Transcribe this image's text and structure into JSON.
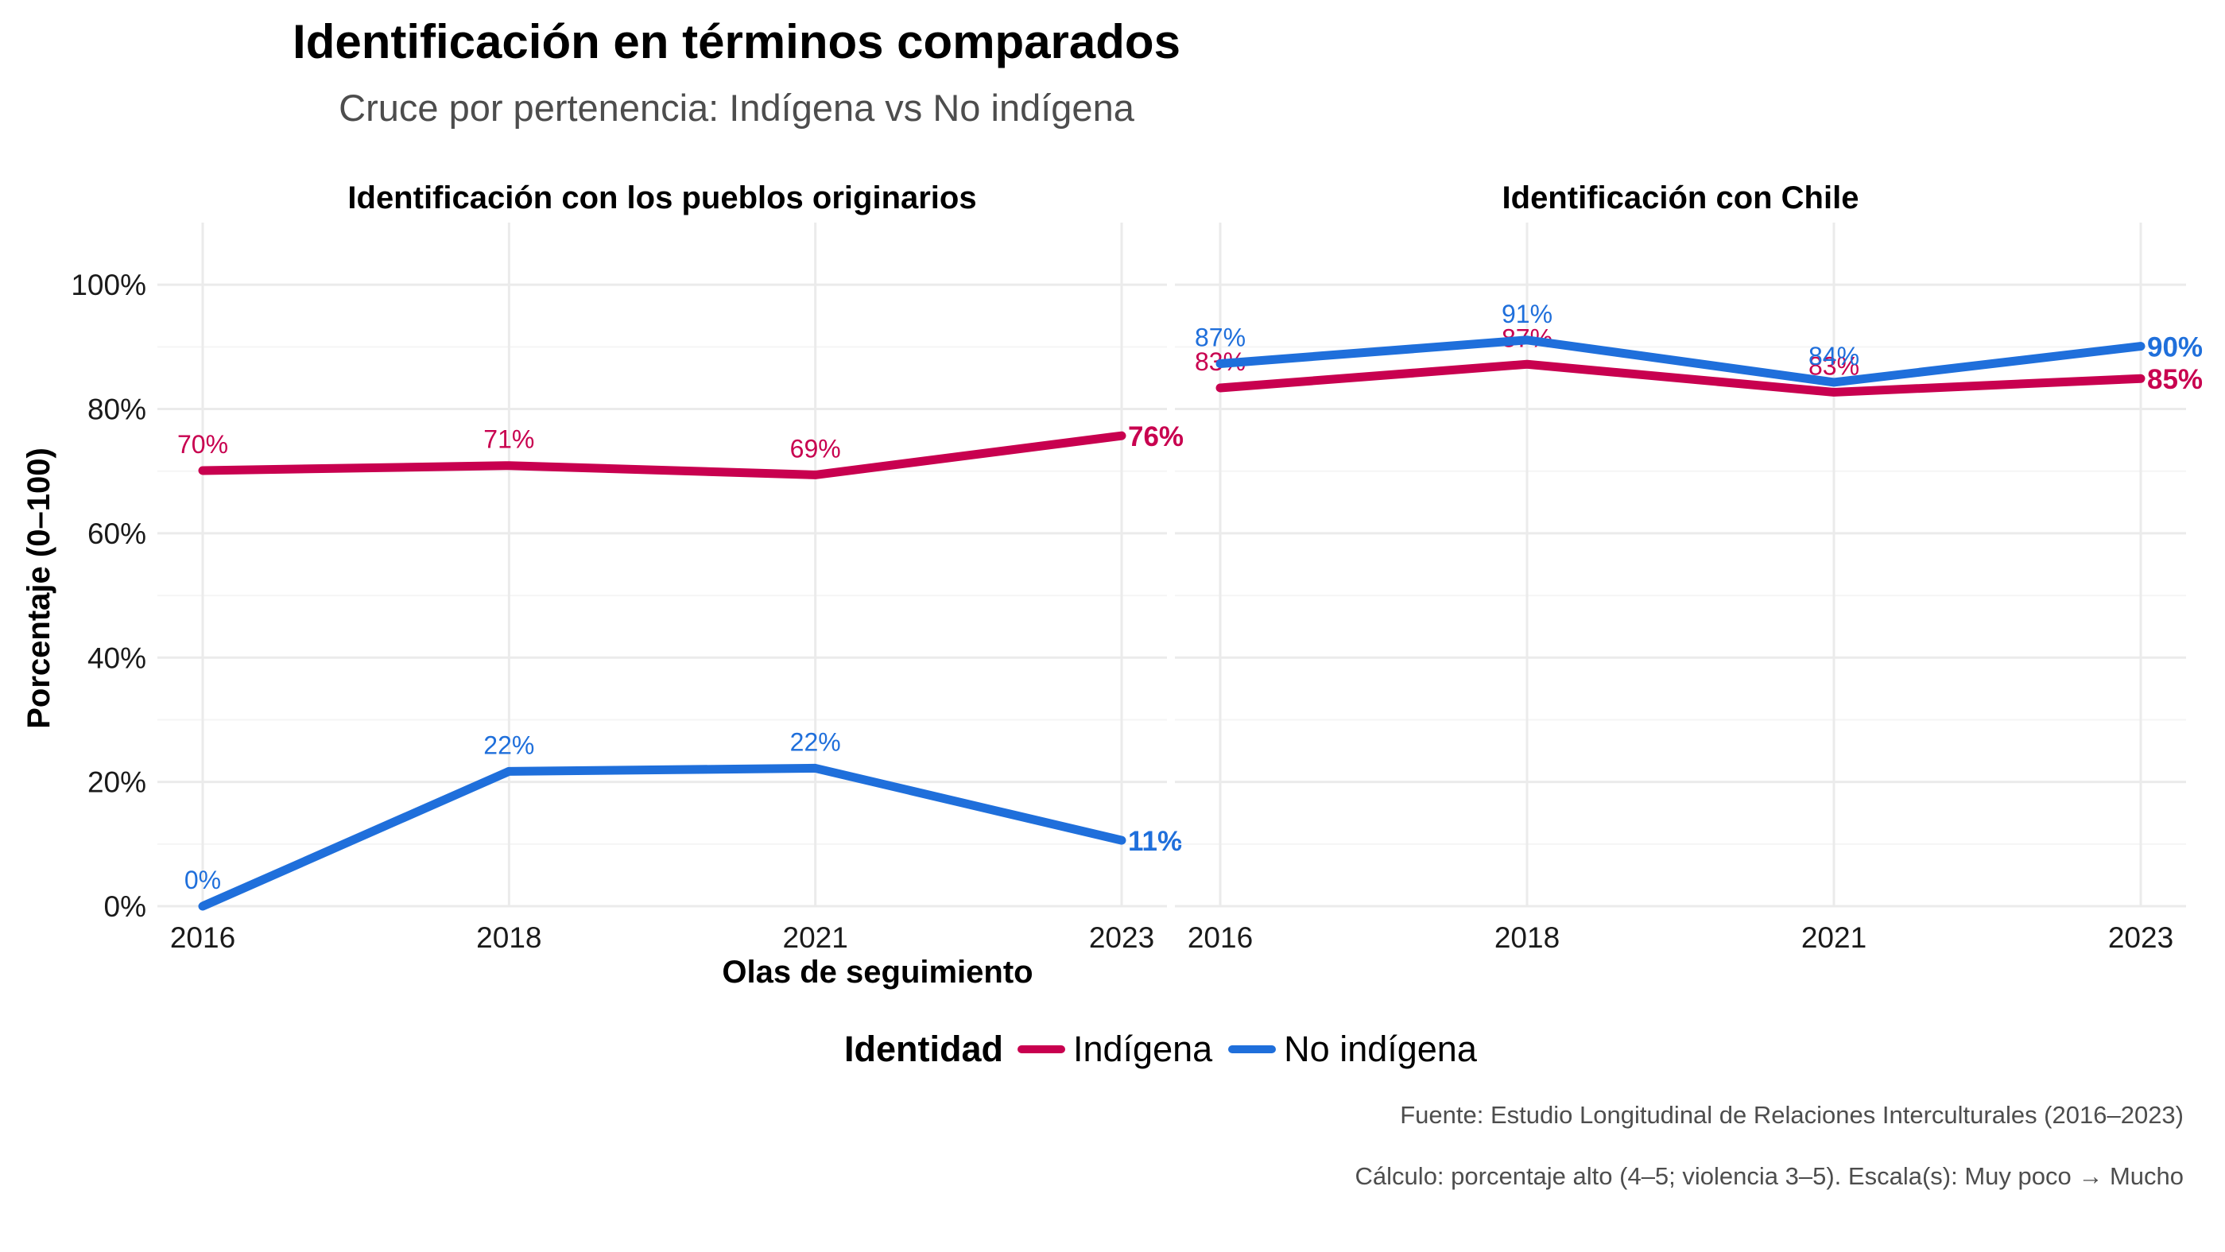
{
  "title": "Identificación en términos comparados",
  "subtitle": "Cruce por pertenencia: Indígena vs No indígena",
  "legend": {
    "title": "Identidad",
    "items": [
      {
        "label": "Indígena",
        "color": "#C8004F"
      },
      {
        "label": "No indígena",
        "color": "#1F6FDB"
      }
    ]
  },
  "captions": {
    "source": "Fuente: Estudio Longitudinal de Relaciones Interculturales (2016–2023)",
    "calc": "Cálculo: porcentaje alto (4–5; violencia 3–5). Escala(s): Muy poco → Mucho"
  },
  "chart_data": {
    "type": "line",
    "xlabel": "Olas de seguimiento",
    "ylabel": "Porcentaje (0–100)",
    "categories": [
      "2016",
      "2018",
      "2021",
      "2023"
    ],
    "y_ticks": [
      "0%",
      "20%",
      "40%",
      "60%",
      "80%",
      "100%"
    ],
    "ylim": [
      0,
      110
    ],
    "grid": true,
    "legend_position": "bottom",
    "panels": [
      {
        "title": "Identificación con los pueblos originarios",
        "series": [
          {
            "name": "Indígena",
            "color": "#C8004F",
            "values": [
              70.1,
              70.9,
              69.4,
              75.7
            ],
            "labels": [
              "70%",
              "71%",
              "69%",
              "76%"
            ]
          },
          {
            "name": "No indígena",
            "color": "#1F6FDB",
            "values": [
              0.0,
              21.7,
              22.2,
              10.6
            ],
            "labels": [
              "0%",
              "22%",
              "22%",
              "11%"
            ]
          }
        ]
      },
      {
        "title": "Identificación con Chile",
        "series": [
          {
            "name": "Indígena",
            "color": "#C8004F",
            "values": [
              83.4,
              87.2,
              82.7,
              84.9
            ],
            "labels": [
              "83%",
              "87%",
              "83%",
              "85%"
            ]
          },
          {
            "name": "No indígena",
            "color": "#1F6FDB",
            "values": [
              87.3,
              91.1,
              84.3,
              90.1
            ],
            "labels": [
              "87%",
              "91%",
              "84%",
              "90%"
            ]
          }
        ]
      }
    ]
  }
}
